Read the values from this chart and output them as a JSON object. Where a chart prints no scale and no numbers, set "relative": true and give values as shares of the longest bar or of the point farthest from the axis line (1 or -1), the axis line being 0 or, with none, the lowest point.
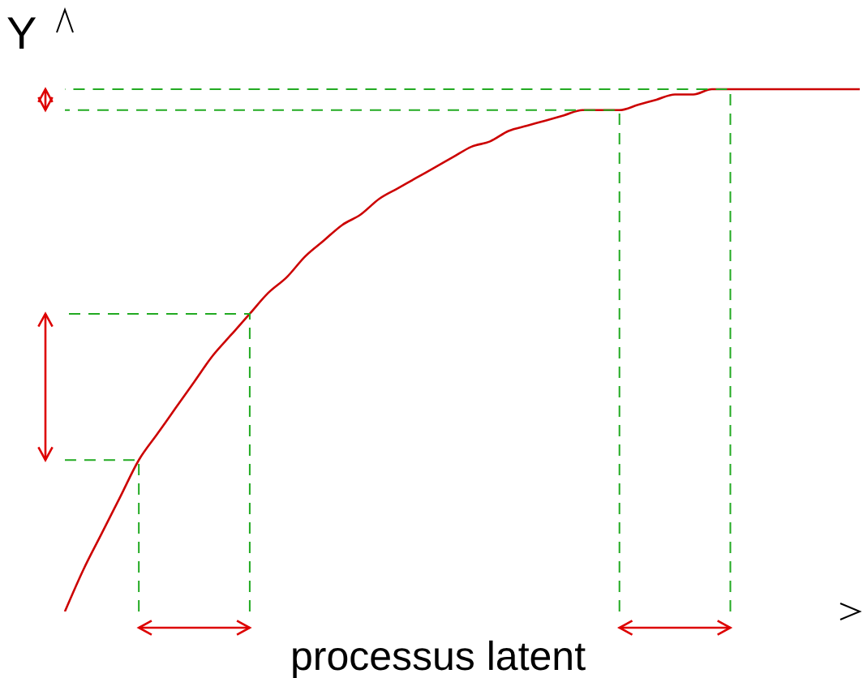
{
  "chart_data": {
    "type": "line",
    "xlabel": "processus latent",
    "ylabel": "Y",
    "relative": true,
    "grid": false,
    "marker": "none",
    "line_style": "solid",
    "categories": [
      null,
      null,
      null,
      null,
      null,
      null,
      null,
      null,
      null,
      null,
      null,
      null,
      null,
      null,
      null,
      null,
      null,
      null,
      null,
      null,
      null,
      null,
      null,
      null,
      null,
      null,
      null,
      null,
      null,
      null,
      null,
      null,
      null,
      null,
      null,
      null,
      null,
      null,
      null,
      null,
      null,
      null,
      null,
      null
    ],
    "series": [
      {
        "color": "#cc0000",
        "values": [
          0,
          0.08,
          0.15,
          0.22,
          0.29,
          0.34,
          0.39,
          0.44,
          0.49,
          0.53,
          0.57,
          0.61,
          0.64,
          0.68,
          0.71,
          0.74,
          0.76,
          0.79,
          0.81,
          0.83,
          0.85,
          0.87,
          0.89,
          0.9,
          0.92,
          0.93,
          0.94,
          0.95,
          0.96,
          0.96,
          0.96,
          0.97,
          0.98,
          0.99,
          0.99,
          1,
          1,
          1,
          1,
          1,
          1,
          1,
          1,
          1
        ]
      }
    ]
  }
}
